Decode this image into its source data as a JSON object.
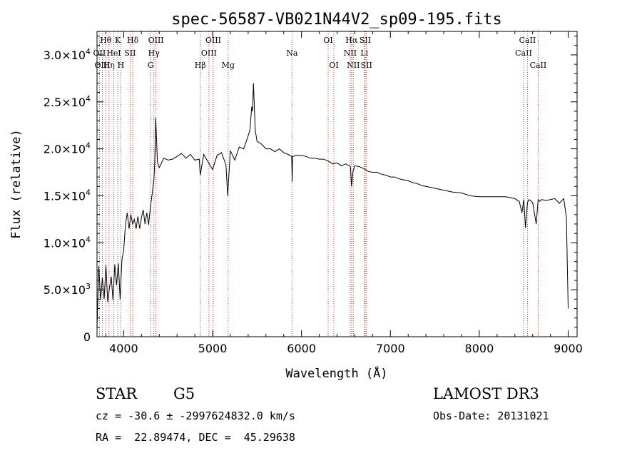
{
  "chart_data": {
    "type": "line",
    "title": "spec-56587-VB021N44V2_sp09-195.fits",
    "xlabel": "Wavelength (Å)",
    "ylabel": "Flux (relative)",
    "xlim": [
      3700,
      9100
    ],
    "ylim": [
      0,
      32500
    ],
    "x_ticks": [
      {
        "value": 4000,
        "label": "4000"
      },
      {
        "value": 5000,
        "label": "5000"
      },
      {
        "value": 6000,
        "label": "6000"
      },
      {
        "value": 7000,
        "label": "7000"
      },
      {
        "value": 8000,
        "label": "8000"
      },
      {
        "value": 9000,
        "label": "9000"
      }
    ],
    "y_ticks": [
      {
        "value": 0,
        "mant": "0",
        "exp": ""
      },
      {
        "value": 5000,
        "mant": "5.0×10",
        "exp": "3"
      },
      {
        "value": 10000,
        "mant": "1.0×10",
        "exp": "4"
      },
      {
        "value": 15000,
        "mant": "1.5×10",
        "exp": "4"
      },
      {
        "value": 20000,
        "mant": "2.0×10",
        "exp": "4"
      },
      {
        "value": 25000,
        "mant": "2.5×10",
        "exp": "4"
      },
      {
        "value": 30000,
        "mant": "3.0×10",
        "exp": "4"
      }
    ],
    "series": [
      {
        "x": [
          3700,
          3720,
          3740,
          3760,
          3780,
          3800,
          3820,
          3840,
          3860,
          3880,
          3900,
          3920,
          3940,
          3960,
          3980,
          4000,
          4020,
          4040,
          4060,
          4080,
          4100,
          4120,
          4140,
          4160,
          4180,
          4200,
          4220,
          4240,
          4260,
          4280,
          4300,
          4320,
          4340,
          4350,
          4360,
          4380,
          4400,
          4450,
          4500,
          4550,
          4600,
          4650,
          4700,
          4750,
          4800,
          4850,
          4861,
          4900,
          4950,
          5000,
          5050,
          5100,
          5150,
          5170,
          5200,
          5250,
          5300,
          5350,
          5400,
          5420,
          5440,
          5450,
          5460,
          5480,
          5500,
          5550,
          5600,
          5650,
          5700,
          5750,
          5800,
          5850,
          5890,
          5895,
          5900,
          5950,
          6000,
          6050,
          6100,
          6150,
          6200,
          6250,
          6300,
          6350,
          6400,
          6450,
          6500,
          6550,
          6563,
          6580,
          6600,
          6650,
          6700,
          6750,
          6800,
          6850,
          6900,
          6950,
          7000,
          7050,
          7100,
          7150,
          7200,
          7250,
          7300,
          7350,
          7400,
          7450,
          7500,
          7600,
          7700,
          7800,
          7900,
          8000,
          8100,
          8200,
          8300,
          8400,
          8450,
          8480,
          8500,
          8520,
          8542,
          8560,
          8600,
          8640,
          8662,
          8680,
          8700,
          8750,
          8800,
          8850,
          8900,
          8950,
          8980,
          9000
        ],
        "y": [
          1000,
          7500,
          3900,
          6300,
          4000,
          7600,
          3700,
          5200,
          6400,
          3900,
          7700,
          5500,
          7800,
          4000,
          8200,
          9200,
          12000,
          13200,
          11500,
          13000,
          12000,
          12500,
          11500,
          12800,
          11500,
          12700,
          13500,
          12000,
          13200,
          11900,
          13800,
          15200,
          16800,
          18600,
          23300,
          18600,
          18000,
          19000,
          18800,
          18900,
          19200,
          19500,
          19000,
          19400,
          18800,
          18900,
          17200,
          19400,
          18600,
          17800,
          19300,
          19600,
          18300,
          15000,
          19800,
          18800,
          20200,
          20000,
          21400,
          22000,
          24500,
          24000,
          27000,
          22000,
          20800,
          20500,
          20000,
          20000,
          19700,
          20000,
          19600,
          19400,
          19200,
          16500,
          19200,
          19300,
          19300,
          19200,
          19000,
          19000,
          18900,
          18900,
          18700,
          18400,
          18500,
          18200,
          18400,
          18100,
          16000,
          17600,
          18200,
          18100,
          17900,
          17600,
          17500,
          17500,
          17300,
          17200,
          17000,
          17000,
          16800,
          16700,
          16600,
          16400,
          16300,
          16100,
          16000,
          15900,
          15800,
          15600,
          15400,
          15300,
          15000,
          14900,
          14900,
          14900,
          14900,
          14700,
          14400,
          13200,
          14600,
          11600,
          14300,
          14600,
          14300,
          12000,
          14600,
          14400,
          14600,
          14500,
          14600,
          14700,
          14200,
          14700,
          12700,
          3000
        ]
      }
    ],
    "lines": [
      {
        "name": "OII",
        "x": 3727,
        "row": 1
      },
      {
        "name": "OIII",
        "x": 3760,
        "row": 2
      },
      {
        "name": "Hθ",
        "x": 3798,
        "row": 0
      },
      {
        "name": "Hη",
        "x": 3835,
        "row": 2
      },
      {
        "name": "HeI",
        "x": 3889,
        "row": 1
      },
      {
        "name": "K",
        "x": 3934,
        "row": 0
      },
      {
        "name": "H",
        "x": 3968,
        "row": 2
      },
      {
        "name": "SII",
        "x": 4072,
        "row": 1
      },
      {
        "name": "Hδ",
        "x": 4102,
        "row": 0
      },
      {
        "name": "G",
        "x": 4304,
        "row": 2
      },
      {
        "name": "Hγ",
        "x": 4340,
        "row": 1
      },
      {
        "name": "OIII",
        "x": 4363,
        "row": 0
      },
      {
        "name": "Hβ",
        "x": 4861,
        "row": 2
      },
      {
        "name": "OIII",
        "x": 4959,
        "row": 1
      },
      {
        "name": "OIII",
        "x": 5007,
        "row": 0
      },
      {
        "name": "Mg",
        "x": 5175,
        "row": 2
      },
      {
        "name": "Na",
        "x": 5893,
        "row": 1
      },
      {
        "name": "OI",
        "x": 6300,
        "row": 0
      },
      {
        "name": "OI",
        "x": 6364,
        "row": 2
      },
      {
        "name": "NII",
        "x": 6548,
        "row": 1
      },
      {
        "name": "Hα",
        "x": 6563,
        "row": 0
      },
      {
        "name": "NII",
        "x": 6583,
        "row": 2
      },
      {
        "name": "Li",
        "x": 6707,
        "row": 1
      },
      {
        "name": "SII",
        "x": 6717,
        "row": 0
      },
      {
        "name": "SII",
        "x": 6731,
        "row": 2
      },
      {
        "name": "CaII",
        "x": 8498,
        "row": 1
      },
      {
        "name": "CaII",
        "x": 8542,
        "row": 0
      },
      {
        "name": "CaII",
        "x": 8662,
        "row": 2
      }
    ]
  },
  "info": {
    "class": "STAR",
    "subclass": "G5",
    "survey": "LAMOST DR3",
    "cz": "cz = -30.6 ± -2997624832.0 km/s",
    "obsdate": "Obs-Date: 20131021",
    "radec": "RA =  22.89474, DEC =  45.29638"
  }
}
